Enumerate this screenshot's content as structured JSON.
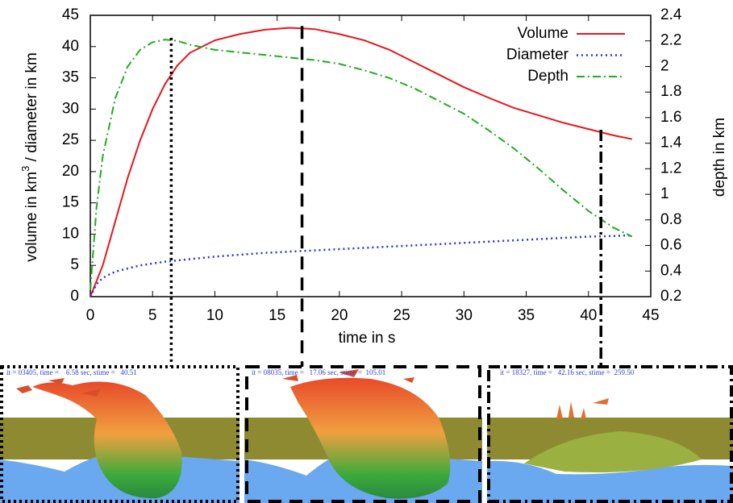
{
  "chart_data": {
    "type": "line",
    "x_label": "time in s",
    "y_label": "volume in km",
    "y_label_sup": "3",
    "y_label_rest": " / diameter in km",
    "y2_label": "depth in km",
    "x": [
      0,
      0.5,
      1,
      2,
      3,
      4,
      5,
      6,
      7,
      8,
      10,
      12,
      14,
      16,
      18,
      20,
      22,
      24,
      26,
      28,
      30,
      32,
      34,
      36,
      38,
      40,
      42,
      43.5
    ],
    "series": [
      {
        "name": "Volume",
        "color": "#e8161b",
        "dash": "solid",
        "values": [
          0,
          2.5,
          5,
          12,
          19,
          25,
          30,
          34,
          37,
          39,
          41,
          42,
          42.7,
          43,
          42.8,
          42,
          41,
          39.5,
          37.5,
          35.5,
          33.5,
          31.8,
          30.2,
          29,
          27.8,
          26.8,
          25.8,
          25.2
        ]
      },
      {
        "name": "Diameter",
        "color": "#2233dd",
        "dash": "dotted",
        "values": [
          0,
          2,
          3,
          4,
          4.5,
          5,
          5.3,
          5.6,
          5.8,
          6,
          6.4,
          6.7,
          7,
          7.2,
          7.4,
          7.6,
          7.8,
          8,
          8.2,
          8.4,
          8.6,
          8.8,
          9,
          9.2,
          9.4,
          9.6,
          9.7,
          9.8
        ]
      },
      {
        "name": "Depth",
        "color": "#22aa22",
        "dash": "dashdot",
        "axis": "y2",
        "values": [
          0.25,
          0.9,
          1.3,
          1.75,
          2.0,
          2.13,
          2.19,
          2.21,
          2.2,
          2.17,
          2.13,
          2.11,
          2.09,
          2.07,
          2.05,
          2.02,
          1.97,
          1.91,
          1.83,
          1.73,
          1.63,
          1.5,
          1.36,
          1.2,
          1.03,
          0.87,
          0.74,
          0.67
        ]
      }
    ],
    "markers": [
      6.5,
      17,
      41
    ],
    "xlim": [
      0,
      45
    ],
    "xticks": [
      0,
      5,
      10,
      15,
      20,
      25,
      30,
      35,
      40,
      45
    ],
    "ylim": [
      0,
      45
    ],
    "yticks": [
      0,
      5,
      10,
      15,
      20,
      25,
      30,
      35,
      40,
      45
    ],
    "y2lim": [
      0.2,
      2.4
    ],
    "y2ticks": [
      0.2,
      0.4,
      0.6,
      0.8,
      1,
      1.2,
      1.4,
      1.6,
      1.8,
      2,
      2.2,
      2.4
    ],
    "legend": "upper right",
    "grid": false
  },
  "panels": [
    {
      "caption": "it = 03405, time =    6.58 sec, stime =   40.51"
    },
    {
      "caption": "it = 08035, time =   17.06 sec, stime =  105.01"
    },
    {
      "caption": "it = 18327, time =   42.16 sec, stime =  259.50"
    }
  ]
}
